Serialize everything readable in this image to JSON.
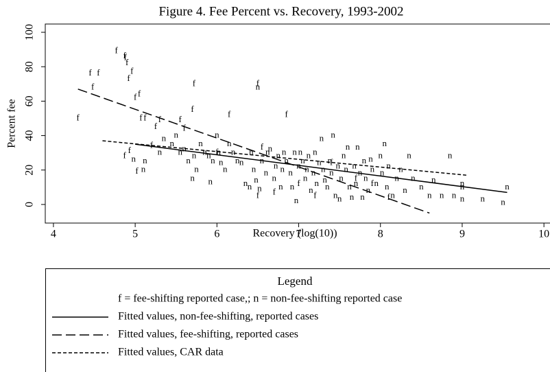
{
  "chart_data": {
    "type": "scatter",
    "title": "Figure 4. Fee Percent vs. Recovery, 1993-2002",
    "x_label": "Recovery (log(10))",
    "y_label": "Percent fee",
    "xlim": [
      3.9,
      10.07
    ],
    "ylim": [
      -10.8,
      104.8
    ],
    "xticks": [
      4,
      5,
      6,
      7,
      8,
      9,
      10
    ],
    "yticks": [
      0,
      20,
      40,
      60,
      80,
      100
    ],
    "series": [
      {
        "marker": "f",
        "color": "#000",
        "x": [
          4.3,
          4.45,
          4.55,
          4.48,
          4.77,
          4.87,
          4.88,
          4.9,
          4.92,
          4.96,
          5.0,
          5.05,
          5.07,
          5.12,
          5.25,
          5.3,
          5.55,
          5.6,
          5.7,
          5.72,
          6.15,
          6.5,
          6.85,
          4.87,
          4.93,
          5.02,
          5.2,
          6.5,
          6.7,
          7.0,
          7.2,
          7.9,
          8.1,
          6.0,
          6.55,
          7.4,
          7.7
        ],
        "values": [
          50,
          76,
          76,
          68,
          89,
          86,
          85,
          82,
          73,
          77,
          62,
          64,
          50,
          50,
          45,
          49,
          49,
          44,
          55,
          70,
          52,
          70,
          52,
          28,
          31,
          19,
          34,
          5,
          7,
          12,
          5,
          12,
          4,
          30,
          33,
          24,
          15
        ]
      },
      {
        "marker": "n",
        "color": "#000",
        "x": [
          4.98,
          5.12,
          5.35,
          5.45,
          5.55,
          5.6,
          5.65,
          5.72,
          5.75,
          5.7,
          5.8,
          5.85,
          5.9,
          5.95,
          6.0,
          6.02,
          6.05,
          6.1,
          6.15,
          6.2,
          6.25,
          6.3,
          6.35,
          6.4,
          6.42,
          6.45,
          6.48,
          6.5,
          6.52,
          6.55,
          6.6,
          6.62,
          6.65,
          6.7,
          6.72,
          6.75,
          6.78,
          6.8,
          6.82,
          6.85,
          6.9,
          6.92,
          6.95,
          6.97,
          7.0,
          7.02,
          7.05,
          7.08,
          7.1,
          7.12,
          7.15,
          7.18,
          7.2,
          7.22,
          7.25,
          7.28,
          7.3,
          7.32,
          7.35,
          7.38,
          7.4,
          7.42,
          7.45,
          7.48,
          7.5,
          7.52,
          7.55,
          7.58,
          7.6,
          7.62,
          7.65,
          7.68,
          7.7,
          7.72,
          7.75,
          7.78,
          7.8,
          7.82,
          7.85,
          7.88,
          7.9,
          7.95,
          8.0,
          8.02,
          8.05,
          8.08,
          8.1,
          8.15,
          8.2,
          8.25,
          8.3,
          8.35,
          8.4,
          8.5,
          8.6,
          8.65,
          8.75,
          8.85,
          8.9,
          9.0,
          9.0,
          9.0,
          9.25,
          9.5,
          9.55,
          5.1,
          5.3,
          5.5,
          5.92
        ],
        "values": [
          26,
          25,
          38,
          35,
          30,
          32,
          25,
          28,
          20,
          15,
          35,
          30,
          28,
          25,
          40,
          30,
          24,
          20,
          35,
          30,
          25,
          24,
          12,
          10,
          30,
          20,
          14,
          68,
          9,
          25,
          18,
          30,
          32,
          15,
          22,
          28,
          10,
          20,
          30,
          25,
          18,
          10,
          30,
          2,
          22,
          30,
          25,
          15,
          20,
          28,
          8,
          18,
          30,
          12,
          24,
          38,
          20,
          14,
          10,
          25,
          18,
          40,
          5,
          22,
          3,
          15,
          28,
          20,
          33,
          10,
          4,
          22,
          12,
          33,
          18,
          4,
          25,
          15,
          8,
          26,
          20,
          12,
          28,
          18,
          35,
          10,
          22,
          5,
          15,
          20,
          8,
          28,
          15,
          10,
          5,
          14,
          5,
          28,
          5,
          10,
          12,
          3,
          3,
          1,
          10,
          20,
          30,
          40,
          13
        ]
      }
    ],
    "lines": [
      {
        "name": "Fitted values, non-fee-shifting, reported cases",
        "dash": "none",
        "x": [
          5.0,
          9.55
        ],
        "values": [
          35,
          7
        ]
      },
      {
        "name": "Fitted values, fee-shifting, reported cases",
        "dash": "14 6",
        "x": [
          4.3,
          8.6
        ],
        "values": [
          67,
          -5
        ]
      },
      {
        "name": "Fitted values, CAR data",
        "dash": "5 3",
        "x": [
          4.6,
          9.05
        ],
        "values": [
          37,
          17
        ]
      }
    ],
    "legend": {
      "title": "Legend",
      "note": "f = fee-shifting reported case,;  n = non-fee-shifting reported case"
    }
  }
}
